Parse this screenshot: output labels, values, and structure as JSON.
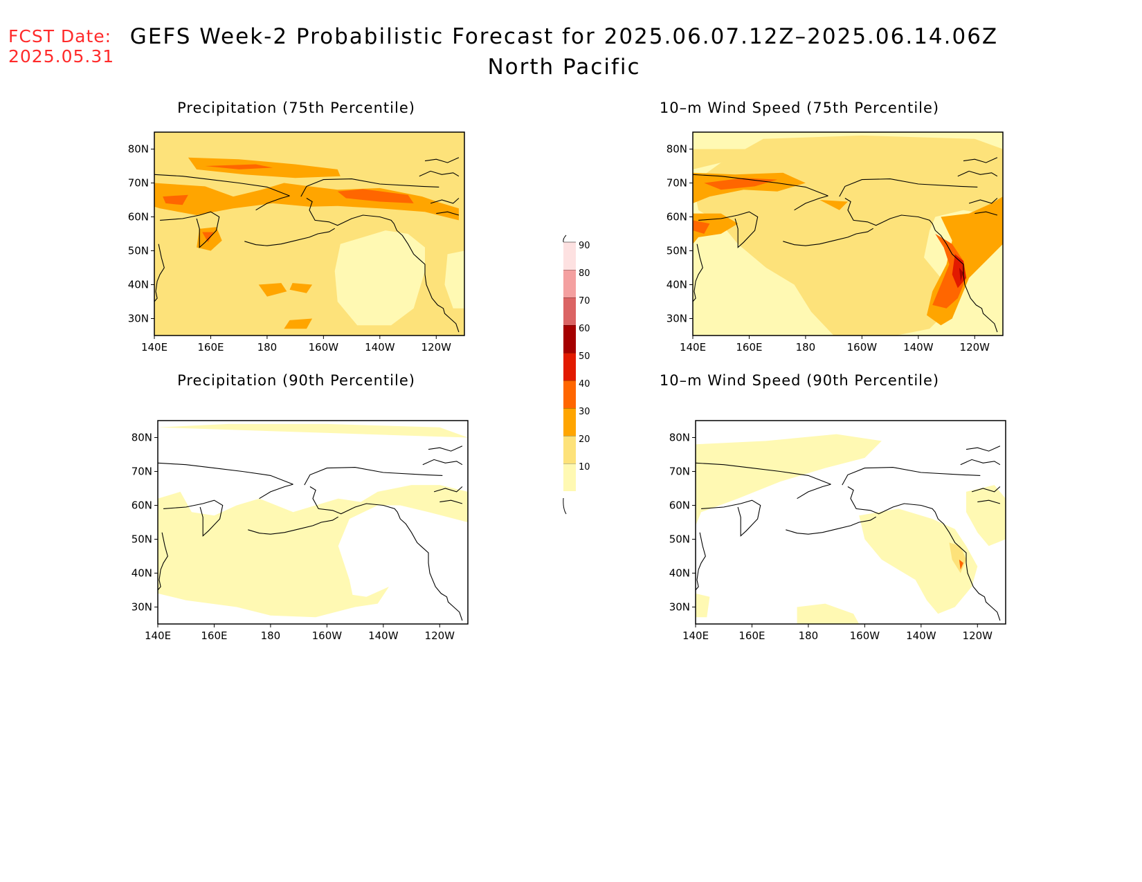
{
  "forecast_date": {
    "label": "FCST Date:",
    "value": "2025.05.31"
  },
  "title": "GEFS Week-2 Probabilistic Forecast for 2025.06.07.12Z–2025.06.14.06Z",
  "subtitle": "North Pacific",
  "colors": {
    "level_10": "#fff9b3",
    "level_20": "#fde27a",
    "level_30": "#ffa500",
    "level_40": "#ff6600",
    "level_50": "#e21a00",
    "level_60": "#a50000",
    "level_70": "#db6464",
    "level_80": "#f4a0a0",
    "level_90": "#fde1e1",
    "coastline": "#000000",
    "title_red": "#ff2a2a"
  },
  "colorbar": {
    "levels": [
      "10",
      "20",
      "30",
      "40",
      "50",
      "60",
      "70",
      "80",
      "90"
    ]
  },
  "axes": {
    "lon_labels": [
      "140E",
      "160E",
      "180",
      "160W",
      "140W",
      "120W"
    ],
    "lat_labels": [
      "80N",
      "70N",
      "60N",
      "50N",
      "40N",
      "30N"
    ]
  },
  "panels": [
    {
      "title": "Precipitation (75th Percentile)",
      "variable": "precipitation",
      "percentile": "75th"
    },
    {
      "title": "10–m Wind Speed (75th Percentile)",
      "variable": "wind",
      "percentile": "75th"
    },
    {
      "title": "Precipitation (90th Percentile)",
      "variable": "precipitation",
      "percentile": "90th"
    },
    {
      "title": "10–m Wind Speed (90th Percentile)",
      "variable": "wind",
      "percentile": "90th"
    }
  ]
}
